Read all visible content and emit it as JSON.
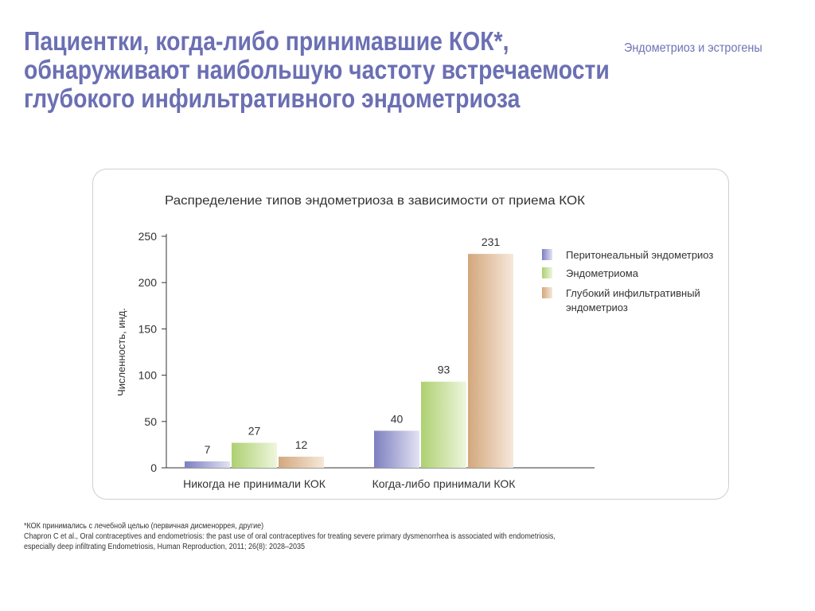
{
  "header": {
    "title_lines": [
      "Пациентки, когда-либо принимавшие КОК*,",
      "обнаруживают наибольшую частоту встречаемости",
      "глубокого инфильтративного эндометриоза"
    ],
    "section_label": "Эндометриоз и эстрогены"
  },
  "footnotes": {
    "note": "*КОК принимались с лечебной целью (первичная дисменоррея, другие)",
    "reference_line1": "Chapron C et al., Oral contraceptives and endometriosis: the past use of oral contraceptives for treating severe primary dysmenorrhea is associated with endometriosis,",
    "reference_line2": "especially deep infiltrating Endometriosis, Human Reproduction, 2011; 26(8): 2028–2035"
  },
  "colors": {
    "title": "#6b6fb3",
    "axis": "#333333",
    "text": "#333333"
  },
  "chart_data": {
    "type": "bar",
    "title": "Распределение типов эндометриоза в зависимости от приема КОК",
    "xlabel": "",
    "ylabel": "Численность, инд.",
    "ylim": [
      0,
      250
    ],
    "yticks": [
      0,
      50,
      100,
      150,
      200,
      250
    ],
    "categories": [
      "Никогда не принимали КОК",
      "Когда-либо принимали КОК"
    ],
    "series": [
      {
        "name": "Перитонеальный эндометриоз",
        "values": [
          7,
          40
        ],
        "color": "#7d7fc0",
        "color_light": "#e2e2f3"
      },
      {
        "name": "Эндометриома",
        "values": [
          27,
          93
        ],
        "color": "#aed071",
        "color_light": "#eef6dd"
      },
      {
        "name": "Глубокий инфильтративный эндометриоз",
        "legend_lines": [
          "Глубокий инфильтративный",
          "эндометриоз"
        ],
        "values": [
          12,
          231
        ],
        "color": "#d3a77d",
        "color_light": "#f6e8da"
      }
    ],
    "grid": false,
    "legend_position": "right"
  }
}
